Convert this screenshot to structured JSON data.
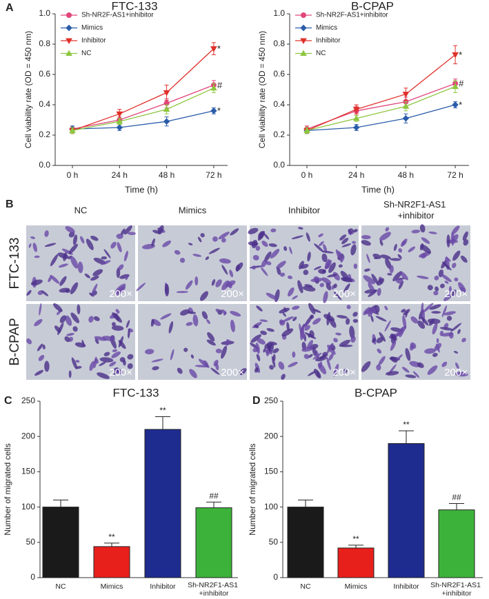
{
  "panel_labels": [
    "A",
    "B",
    "C",
    "D"
  ],
  "micrographs": {
    "columns": [
      "NC",
      "Mimics",
      "Inhibitor",
      "Sh-NR2F1-AS1 +inhibitor"
    ],
    "rows": [
      "FTC-133",
      "B-CPAP"
    ],
    "magnification": "200×"
  },
  "chart_data": [
    {
      "type": "line",
      "title": "FTC-133",
      "x_label": "Time (h)",
      "y_label": "Cell viability rate (OD = 450 nm)",
      "categories": [
        "0 h",
        "24 h",
        "48 h",
        "72 h"
      ],
      "series": [
        {
          "name": "Sh-NR2F-AS1+inhibitor",
          "color": "#e0457b",
          "marker": "circle",
          "values": [
            0.24,
            0.3,
            0.41,
            0.53
          ],
          "errors": [
            0.02,
            0.02,
            0.03,
            0.03
          ],
          "annotation": "#"
        },
        {
          "name": "Mimics",
          "color": "#2a5caa",
          "marker": "diamond",
          "values": [
            0.24,
            0.25,
            0.29,
            0.36
          ],
          "errors": [
            0.02,
            0.02,
            0.03,
            0.02
          ],
          "annotation": "*"
        },
        {
          "name": "Inhibitor",
          "color": "#e0302a",
          "marker": "triangle-down",
          "values": [
            0.23,
            0.34,
            0.48,
            0.77
          ],
          "errors": [
            0.02,
            0.03,
            0.05,
            0.04
          ],
          "annotation": "*"
        },
        {
          "name": "NC",
          "color": "#8dc63f",
          "marker": "triangle-up",
          "values": [
            0.23,
            0.29,
            0.37,
            0.51
          ],
          "errors": [
            0.02,
            0.02,
            0.03,
            0.03
          ]
        }
      ],
      "ylim": [
        0,
        1.0
      ],
      "yticks": [
        {
          "value": 0,
          "label": "0.0"
        },
        0.2,
        0.4,
        0.6,
        0.8,
        {
          "value": 1.0,
          "label": "1.0"
        }
      ],
      "legend": "upper left"
    },
    {
      "type": "line",
      "title": "B-CPAP",
      "x_label": "Time (h)",
      "y_label": "Cell viability rate (OD = 450 nm)",
      "categories": [
        "0 h",
        "24 h",
        "48 h",
        "72 h"
      ],
      "series": [
        {
          "name": "Sh-NR2F-AS1+inhibitor",
          "color": "#e0457b",
          "marker": "circle",
          "values": [
            0.24,
            0.36,
            0.42,
            0.54
          ],
          "errors": [
            0.02,
            0.03,
            0.03,
            0.03
          ],
          "annotation": "#"
        },
        {
          "name": "Mimics",
          "color": "#2a5caa",
          "marker": "diamond",
          "values": [
            0.23,
            0.25,
            0.31,
            0.4
          ],
          "errors": [
            0.02,
            0.02,
            0.03,
            0.02
          ],
          "annotation": "*"
        },
        {
          "name": "Inhibitor",
          "color": "#e0302a",
          "marker": "triangle-down",
          "values": [
            0.23,
            0.37,
            0.47,
            0.73
          ],
          "errors": [
            0.02,
            0.03,
            0.04,
            0.06
          ],
          "annotation": "*"
        },
        {
          "name": "NC",
          "color": "#8dc63f",
          "marker": "triangle-up",
          "values": [
            0.23,
            0.31,
            0.39,
            0.52
          ],
          "errors": [
            0.02,
            0.02,
            0.03,
            0.04
          ]
        }
      ],
      "ylim": [
        0,
        1.0
      ],
      "yticks": [
        {
          "value": 0,
          "label": "0.0"
        },
        0.2,
        0.4,
        0.6,
        0.8,
        {
          "value": 1.0,
          "label": "1.0"
        }
      ],
      "legend": "upper left"
    },
    {
      "type": "bar",
      "title": "FTC-133",
      "y_label": "Number of migrated cells",
      "categories": [
        "NC",
        "Mimics",
        "Inhibitor",
        "Sh-NR2F1-AS1 +inhibitor"
      ],
      "values": [
        100,
        44,
        210,
        99
      ],
      "errors": [
        10,
        5,
        18,
        8
      ],
      "colors": [
        "#1a1a1a",
        "#e8201c",
        "#1e2b8f",
        "#3db23a"
      ],
      "significance": [
        null,
        "**",
        "**",
        "##"
      ],
      "ylim": [
        0,
        250
      ],
      "yticks": [
        0,
        50,
        100,
        150,
        200,
        250
      ]
    },
    {
      "type": "bar",
      "title": "B-CPAP",
      "y_label": "Number of migrated cells",
      "categories": [
        "NC",
        "Mimics",
        "Inhibitor",
        "Sh-NR2F1-AS1 +inhibitor"
      ],
      "values": [
        100,
        42,
        190,
        96
      ],
      "errors": [
        10,
        4,
        18,
        9
      ],
      "colors": [
        "#1a1a1a",
        "#e8201c",
        "#1e2b8f",
        "#3db23a"
      ],
      "significance": [
        null,
        "**",
        "**",
        "##"
      ],
      "ylim": [
        0,
        250
      ],
      "yticks": [
        0,
        50,
        100,
        150,
        200,
        250
      ]
    }
  ]
}
